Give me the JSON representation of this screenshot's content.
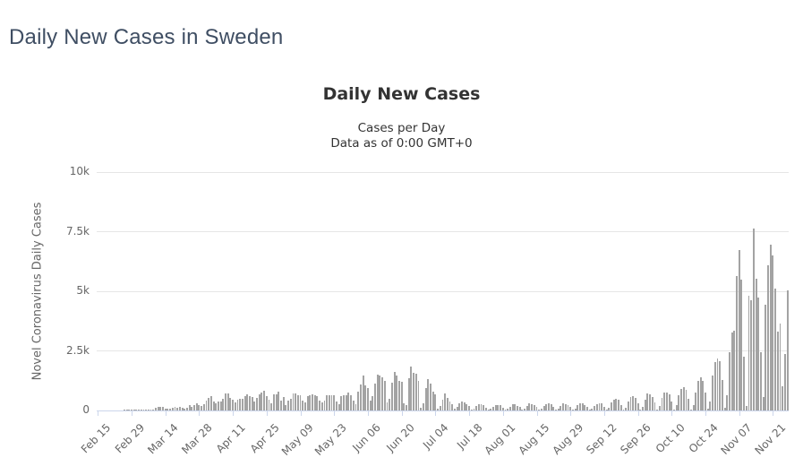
{
  "page": {
    "title": "Daily New Cases in Sweden"
  },
  "chart": {
    "title": "Daily New Cases",
    "subtitle1": "Cases per Day",
    "subtitle2": "Data as of 0:00 GMT+0",
    "y_axis_title": "Novel Coronavirus Daily Cases"
  },
  "colors": {
    "bar": "#a3a3a3",
    "grid": "#e6e6e6",
    "axis_line": "#ccd6eb",
    "tick_label": "#666666",
    "title_text": "#333333",
    "page_title_text": "#3f4e63"
  },
  "chart_data": {
    "type": "bar",
    "title": "Daily New Cases",
    "subtitle": [
      "Cases per Day",
      "Data as of 0:00 GMT+0"
    ],
    "xlabel": "",
    "ylabel": "Novel Coronavirus Daily Cases",
    "ylim": [
      0,
      10000
    ],
    "y_ticks": [
      0,
      2500,
      5000,
      7500,
      10000
    ],
    "y_tick_labels": [
      "0",
      "2.5k",
      "5k",
      "7.5k",
      "10k"
    ],
    "grid": true,
    "legend": false,
    "start_category": "Feb 15",
    "x_tick_every_n_bars": 14,
    "x_tick_labels": [
      "Feb 15",
      "Feb 29",
      "Mar 14",
      "Mar 28",
      "Apr 11",
      "Apr 25",
      "May 09",
      "May 23",
      "Jun 06",
      "Jun 20",
      "Jul 04",
      "Jul 18",
      "Aug 01",
      "Aug 15",
      "Aug 29",
      "Sep 12",
      "Sep 26",
      "Oct 10",
      "Oct 24",
      "Nov 07",
      "Nov 21"
    ],
    "values": [
      0,
      0,
      0,
      0,
      0,
      0,
      0,
      0,
      0,
      0,
      0,
      1,
      5,
      4,
      1,
      1,
      2,
      9,
      22,
      42,
      43,
      44,
      42,
      45,
      97,
      142,
      137,
      155,
      60,
      68,
      90,
      112,
      159,
      131,
      155,
      107,
      70,
      114,
      240,
      168,
      240,
      310,
      218,
      188,
      253,
      407,
      512,
      612,
      365,
      312,
      387,
      376,
      487,
      726,
      722,
      544,
      466,
      332,
      465,
      497,
      482,
      613,
      676,
      606,
      563,
      392,
      545,
      682,
      751,
      812,
      610,
      463,
      286,
      695,
      681,
      790,
      428,
      562,
      235,
      404,
      495,
      702,
      705,
      642,
      656,
      401,
      348,
      602,
      637,
      673,
      625,
      610,
      401,
      350,
      422,
      648,
      649,
      637,
      656,
      383,
      272,
      597,
      648,
      639,
      749,
      639,
      429,
      272,
      774,
      1080,
      1474,
      1056,
      948,
      403,
      593,
      1110,
      1487,
      1476,
      1396,
      1247,
      342,
      479,
      1171,
      1610,
      1481,
      1247,
      1198,
      299,
      236,
      1356,
      1860,
      1566,
      1533,
      1247,
      100,
      283,
      947,
      1309,
      1131,
      778,
      661,
      60,
      199,
      438,
      710,
      514,
      387,
      265,
      58,
      136,
      289,
      380,
      347,
      262,
      200,
      31,
      87,
      181,
      275,
      268,
      219,
      121,
      24,
      69,
      167,
      232,
      228,
      208,
      120,
      17,
      61,
      157,
      279,
      245,
      206,
      150,
      17,
      59,
      185,
      284,
      279,
      234,
      158,
      24,
      71,
      198,
      281,
      318,
      276,
      164,
      24,
      70,
      201,
      302,
      268,
      239,
      156,
      17,
      84,
      222,
      304,
      288,
      235,
      136,
      18,
      80,
      176,
      272,
      318,
      318,
      164,
      21,
      110,
      326,
      458,
      488,
      435,
      234,
      33,
      119,
      359,
      554,
      600,
      540,
      296,
      41,
      149,
      463,
      702,
      667,
      575,
      357,
      47,
      170,
      536,
      752,
      737,
      660,
      392,
      53,
      223,
      631,
      892,
      967,
      880,
      479,
      56,
      234,
      748,
      1254,
      1380,
      1246,
      734,
      84,
      392,
      1480,
      2021,
      2197,
      2073,
      1291,
      124,
      651,
      2455,
      3254,
      3357,
      5630,
      6726,
      5481,
      2254,
      194,
      4820,
      4630,
      7634,
      5510,
      4730,
      2430,
      560,
      4420,
      6100,
      6938,
      6485,
      5100,
      3320,
      3630,
      1000,
      2376,
      5047
    ]
  }
}
